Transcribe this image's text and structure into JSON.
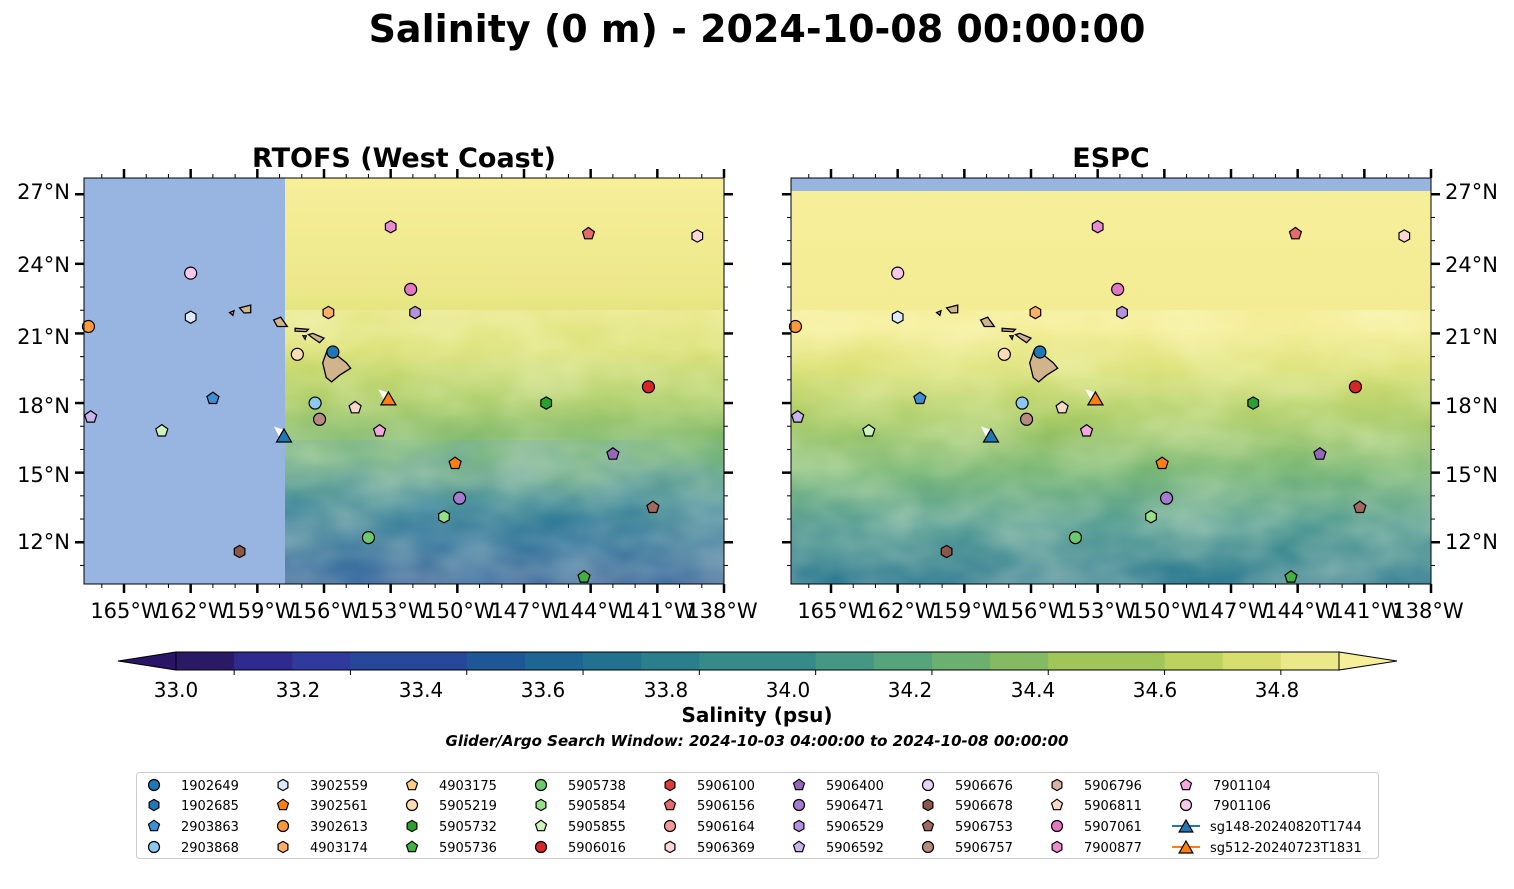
{
  "title": "Salinity (0 m) - 2024-10-08 00:00:00",
  "colors": {
    "land": "#d2b48c",
    "nodata": "#98b4e0",
    "colormap": [
      "#2a1a66",
      "#2e2a8e",
      "#2f3a9c",
      "#26479a",
      "#1e5795",
      "#1d6592",
      "#22728f",
      "#2b7f8c",
      "#368b88",
      "#449883",
      "#56a47b",
      "#6cb070",
      "#84bb62",
      "#a0c65a",
      "#bdd25e",
      "#d8de6d",
      "#ebe88a"
    ],
    "over": "#f7ee9a",
    "under": "#2a1466"
  },
  "colorbar": {
    "label": "Salinity (psu)",
    "ticks": [
      "33.0",
      "33.2",
      "33.4",
      "33.6",
      "33.8",
      "34.0",
      "34.2",
      "34.4",
      "34.6",
      "34.8"
    ],
    "vmin": 32.9,
    "vmax": 34.9,
    "step": 0.1,
    "extend": "both"
  },
  "search_window": "Glider/Argo Search Window: 2024-10-03 04:00:00 to 2024-10-08 00:00:00",
  "chart_data": [
    {
      "type": "heatmap",
      "title": "RTOFS (West Coast)",
      "x_ticks": [
        "165°W",
        "162°W",
        "159°W",
        "156°W",
        "153°W",
        "150°W",
        "147°W",
        "144°W",
        "141°W",
        "138°W"
      ],
      "y_ticks": [
        "12°N",
        "15°N",
        "18°N",
        "21°N",
        "24°N",
        "27°N"
      ],
      "xlim": [
        -166.8,
        -138
      ],
      "ylim": [
        10.2,
        27.7
      ],
      "coverage_west_edge_lon": -157.8
    },
    {
      "type": "heatmap",
      "title": "ESPC",
      "x_ticks": [
        "165°W",
        "162°W",
        "159°W",
        "156°W",
        "153°W",
        "150°W",
        "147°W",
        "144°W",
        "141°W",
        "138°W"
      ],
      "y_ticks": [
        "12°N",
        "15°N",
        "18°N",
        "21°N",
        "24°N",
        "27°N"
      ],
      "xlim": [
        -166.8,
        -138
      ],
      "ylim": [
        10.2,
        27.7
      ],
      "coverage_north_edge_lat": 27.2
    }
  ],
  "observations": [
    {
      "id": "1902649",
      "marker": "circle",
      "color": "#1f77b4",
      "lon": -155.6,
      "lat": 20.2
    },
    {
      "id": "1902685",
      "marker": "hexagon",
      "color": "#1f77b4",
      "lon": null,
      "lat": null
    },
    {
      "id": "2903863",
      "marker": "pentagon",
      "color": "#3c8fd4",
      "lon": -161.0,
      "lat": 18.2
    },
    {
      "id": "2903868",
      "marker": "circle",
      "color": "#8cc8f0",
      "lon": -156.4,
      "lat": 18.0
    },
    {
      "id": "3902559",
      "marker": "hexagon",
      "color": "#dcebf8",
      "lon": -162.0,
      "lat": 21.7
    },
    {
      "id": "3902561",
      "marker": "pentagon",
      "color": "#ff7f0e",
      "lon": -150.1,
      "lat": 15.4
    },
    {
      "id": "3902613",
      "marker": "circle",
      "color": "#ff9a3c",
      "lon": -166.6,
      "lat": 21.3
    },
    {
      "id": "4903174",
      "marker": "hexagon",
      "color": "#ffb066",
      "lon": -155.8,
      "lat": 21.9
    },
    {
      "id": "4903175",
      "marker": "pentagon",
      "color": "#ffcc8a",
      "lon": null,
      "lat": null
    },
    {
      "id": "5905219",
      "marker": "circle",
      "color": "#ffdcb8",
      "lon": -157.2,
      "lat": 20.1
    },
    {
      "id": "5905732",
      "marker": "hexagon",
      "color": "#2ca02c",
      "lon": -146.0,
      "lat": 18.0
    },
    {
      "id": "5905736",
      "marker": "pentagon",
      "color": "#43b043",
      "lon": -144.3,
      "lat": 10.5
    },
    {
      "id": "5905738",
      "marker": "circle",
      "color": "#6dc96d",
      "lon": -154.0,
      "lat": 12.2
    },
    {
      "id": "5905854",
      "marker": "hexagon",
      "color": "#98df8a",
      "lon": -150.6,
      "lat": 13.1
    },
    {
      "id": "5905855",
      "marker": "pentagon",
      "color": "#ccf5bd",
      "lon": -163.3,
      "lat": 16.8
    },
    {
      "id": "5906016",
      "marker": "circle",
      "color": "#d62728",
      "lon": -141.4,
      "lat": 18.7
    },
    {
      "id": "5906100",
      "marker": "hexagon",
      "color": "#e03b3b",
      "lon": null,
      "lat": null
    },
    {
      "id": "5906156",
      "marker": "pentagon",
      "color": "#e56b6b",
      "lon": -144.1,
      "lat": 25.3
    },
    {
      "id": "5906164",
      "marker": "circle",
      "color": "#f29a9a",
      "lon": null,
      "lat": null
    },
    {
      "id": "5906369",
      "marker": "hexagon",
      "color": "#ffd6d6",
      "lon": -139.2,
      "lat": 25.2
    },
    {
      "id": "5906400",
      "marker": "pentagon",
      "color": "#9467bd",
      "lon": -143.0,
      "lat": 15.8
    },
    {
      "id": "5906471",
      "marker": "circle",
      "color": "#a57bd0",
      "lon": -149.9,
      "lat": 13.9
    },
    {
      "id": "5906529",
      "marker": "hexagon",
      "color": "#b592e0",
      "lon": -151.9,
      "lat": 21.9
    },
    {
      "id": "5906592",
      "marker": "pentagon",
      "color": "#c9b4ee",
      "lon": -166.5,
      "lat": 17.4
    },
    {
      "id": "5906676",
      "marker": "circle",
      "color": "#e6d3f8",
      "lon": null,
      "lat": null
    },
    {
      "id": "5906678",
      "marker": "hexagon",
      "color": "#8c564b",
      "lon": -159.8,
      "lat": 11.6
    },
    {
      "id": "5906753",
      "marker": "pentagon",
      "color": "#a06a5e",
      "lon": -141.2,
      "lat": 13.5
    },
    {
      "id": "5906757",
      "marker": "circle",
      "color": "#b58b7f",
      "lon": -156.2,
      "lat": 17.3
    },
    {
      "id": "5906796",
      "marker": "hexagon",
      "color": "#d9b3a5",
      "lon": null,
      "lat": null
    },
    {
      "id": "5906811",
      "marker": "pentagon",
      "color": "#f7d9cc",
      "lon": -154.6,
      "lat": 17.8
    },
    {
      "id": "5907061",
      "marker": "circle",
      "color": "#e377c2",
      "lon": -152.1,
      "lat": 22.9
    },
    {
      "id": "7900877",
      "marker": "hexagon",
      "color": "#ea8ccf",
      "lon": -153.0,
      "lat": 25.6
    },
    {
      "id": "7901104",
      "marker": "pentagon",
      "color": "#f0a8dd",
      "lon": -153.5,
      "lat": 16.8
    },
    {
      "id": "7901106",
      "marker": "circle",
      "color": "#f7c8ea",
      "lon": -162.0,
      "lat": 23.6
    },
    {
      "id": "sg148-20240820T1744",
      "marker": "triangle",
      "color": "#1f77b4",
      "lon": -157.8,
      "lat": 16.6
    },
    {
      "id": "sg512-20240723T1831",
      "marker": "triangle",
      "color": "#ff7f0e",
      "lon": -153.1,
      "lat": 18.2
    }
  ]
}
